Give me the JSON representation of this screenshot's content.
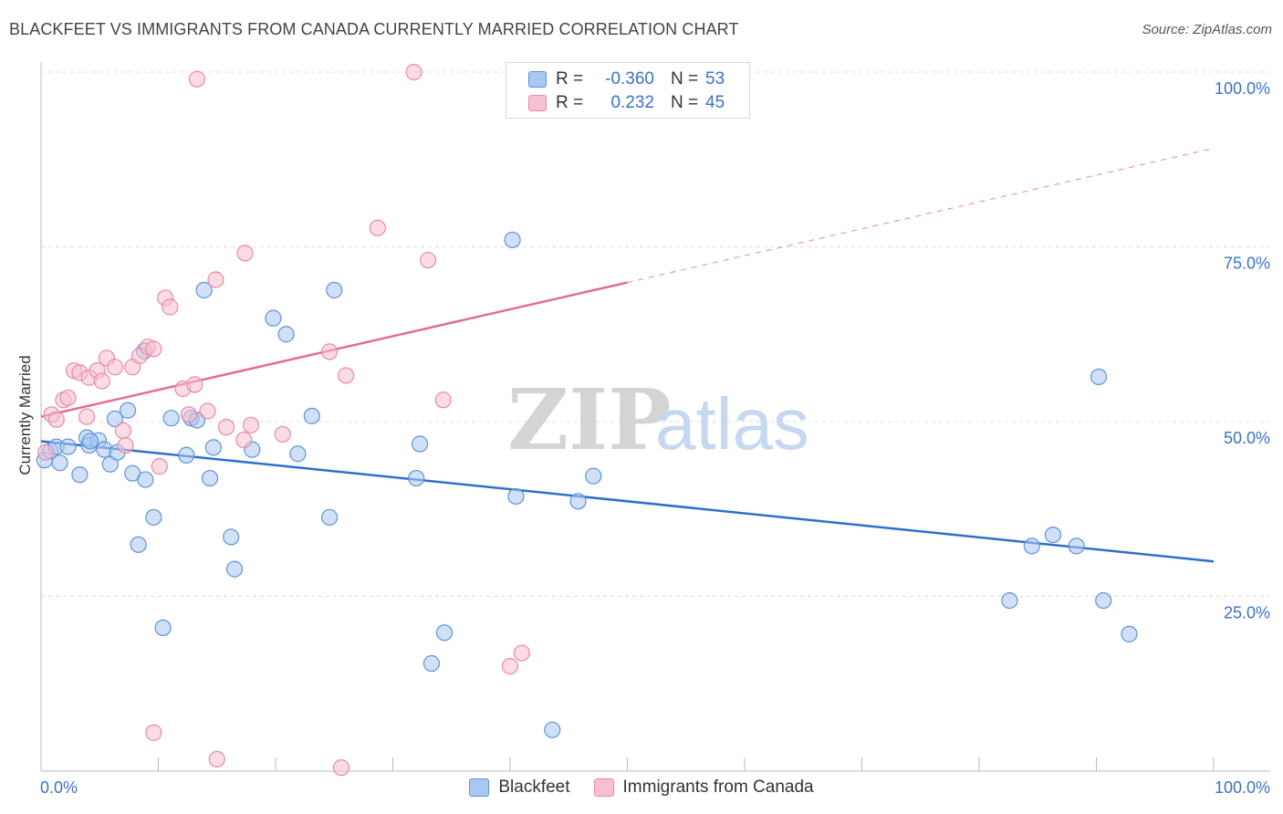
{
  "title": "BLACKFEET VS IMMIGRANTS FROM CANADA CURRENTLY MARRIED CORRELATION CHART",
  "source": "Source: ZipAtlas.com",
  "watermark": {
    "zip": "ZIP",
    "atlas": "atlas"
  },
  "legend_top": [
    {
      "r_label": "R =",
      "r_value": "-0.360",
      "n_label": "N =",
      "n_value": "53"
    },
    {
      "r_label": "R =",
      "r_value": "0.232",
      "n_label": "N =",
      "n_value": "45"
    }
  ],
  "legend_bottom": [
    {
      "label": "Blackfeet"
    },
    {
      "label": "Immigrants from Canada"
    }
  ],
  "colors": {
    "blue_fill": "#a9c8f0",
    "blue_stroke": "#5d93d8",
    "blue_line": "#2f6fcc",
    "pink_fill": "#f7c0d0",
    "pink_stroke": "#e88aa8",
    "pink_line": "#e36b95",
    "tick_label": "#3a72c8",
    "grid": "#dcdcdc"
  },
  "chart_data": {
    "type": "scatter",
    "title": "BLACKFEET VS IMMIGRANTS FROM CANADA CURRENTLY MARRIED CORRELATION CHART",
    "xlabel": "",
    "ylabel": "Currently Married",
    "xlim": [
      0,
      100
    ],
    "ylim": [
      0,
      100
    ],
    "x_tick_labels": [
      "0.0%",
      "100.0%"
    ],
    "y_tick_labels": [
      "100.0%",
      "75.0%",
      "50.0%",
      "25.0%"
    ],
    "y_ticks": [
      100,
      75,
      50,
      25
    ],
    "grid": true,
    "legend_position": "top-center",
    "series": [
      {
        "name": "Blackfeet",
        "color": "#a9c8f0",
        "trend": {
          "x0": 0,
          "y0": 47.2,
          "x1": 100,
          "y1": 30.0,
          "solid_until": 100
        },
        "points": [
          [
            0.3,
            44.5
          ],
          [
            0.8,
            45.8
          ],
          [
            1.3,
            46.4
          ],
          [
            1.6,
            44.1
          ],
          [
            2.3,
            46.4
          ],
          [
            3.3,
            42.4
          ],
          [
            3.9,
            47.7
          ],
          [
            4.1,
            46.6
          ],
          [
            4.9,
            47.3
          ],
          [
            5.4,
            46.0
          ],
          [
            5.9,
            43.9
          ],
          [
            6.5,
            45.6
          ],
          [
            6.3,
            50.4
          ],
          [
            7.4,
            51.6
          ],
          [
            7.8,
            42.6
          ],
          [
            8.3,
            32.4
          ],
          [
            8.9,
            41.7
          ],
          [
            9.6,
            36.3
          ],
          [
            8.8,
            60.1
          ],
          [
            10.4,
            20.5
          ],
          [
            11.1,
            50.5
          ],
          [
            12.4,
            45.2
          ],
          [
            12.8,
            50.5
          ],
          [
            13.3,
            50.2
          ],
          [
            13.9,
            68.8
          ],
          [
            14.4,
            41.9
          ],
          [
            14.7,
            46.3
          ],
          [
            16.2,
            33.5
          ],
          [
            16.5,
            28.9
          ],
          [
            18.0,
            46.0
          ],
          [
            19.8,
            64.8
          ],
          [
            20.9,
            62.5
          ],
          [
            21.9,
            45.4
          ],
          [
            23.1,
            50.8
          ],
          [
            25.0,
            68.8
          ],
          [
            24.6,
            36.3
          ],
          [
            32.0,
            41.9
          ],
          [
            32.3,
            46.8
          ],
          [
            33.3,
            15.4
          ],
          [
            34.4,
            19.8
          ],
          [
            40.2,
            76.0
          ],
          [
            40.5,
            39.3
          ],
          [
            43.6,
            5.9
          ],
          [
            45.8,
            38.6
          ],
          [
            47.1,
            42.2
          ],
          [
            82.6,
            24.4
          ],
          [
            84.5,
            32.2
          ],
          [
            86.3,
            33.8
          ],
          [
            88.3,
            32.2
          ],
          [
            90.6,
            24.4
          ],
          [
            90.2,
            56.4
          ],
          [
            92.8,
            19.6
          ],
          [
            4.2,
            47.2
          ]
        ]
      },
      {
        "name": "Immigrants from Canada",
        "color": "#f7c0d0",
        "trend": {
          "x0": 0,
          "y0": 50.7,
          "x1": 100,
          "y1": 89.1,
          "solid_until": 50
        },
        "points": [
          [
            0.4,
            45.6
          ],
          [
            0.9,
            51.0
          ],
          [
            1.3,
            50.3
          ],
          [
            1.9,
            53.1
          ],
          [
            2.3,
            53.4
          ],
          [
            2.8,
            57.3
          ],
          [
            3.3,
            57.0
          ],
          [
            3.9,
            50.7
          ],
          [
            4.1,
            56.3
          ],
          [
            4.8,
            57.3
          ],
          [
            5.2,
            55.8
          ],
          [
            5.6,
            59.1
          ],
          [
            6.3,
            57.8
          ],
          [
            7.0,
            48.7
          ],
          [
            7.2,
            46.6
          ],
          [
            7.8,
            57.8
          ],
          [
            8.4,
            59.4
          ],
          [
            9.1,
            60.7
          ],
          [
            9.6,
            60.4
          ],
          [
            10.1,
            43.6
          ],
          [
            10.6,
            67.7
          ],
          [
            11.0,
            66.4
          ],
          [
            12.1,
            54.7
          ],
          [
            12.6,
            51.0
          ],
          [
            13.1,
            55.3
          ],
          [
            13.3,
            99.0
          ],
          [
            14.2,
            51.5
          ],
          [
            14.9,
            70.3
          ],
          [
            15.8,
            49.2
          ],
          [
            17.3,
            47.4
          ],
          [
            17.4,
            74.1
          ],
          [
            17.9,
            49.5
          ],
          [
            20.6,
            48.2
          ],
          [
            24.6,
            60.0
          ],
          [
            25.6,
            0.5
          ],
          [
            26.0,
            56.6
          ],
          [
            28.7,
            77.7
          ],
          [
            31.8,
            100.0
          ],
          [
            33.0,
            73.1
          ],
          [
            34.3,
            53.1
          ],
          [
            40.0,
            15.0
          ],
          [
            41.0,
            16.9
          ],
          [
            48.0,
            100.0
          ],
          [
            9.6,
            5.5
          ],
          [
            15.0,
            1.7
          ]
        ]
      }
    ]
  }
}
